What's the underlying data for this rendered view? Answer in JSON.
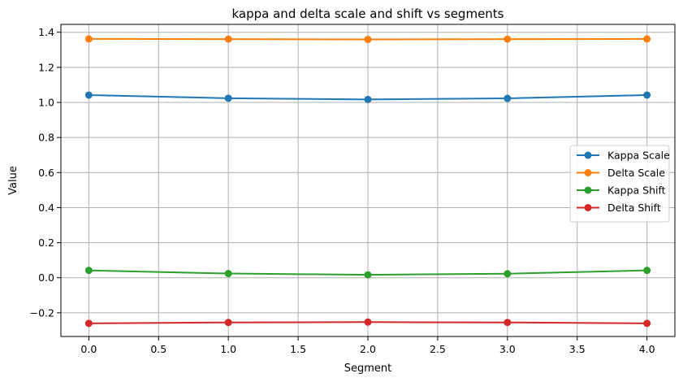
{
  "chart_data": {
    "type": "line",
    "title": "kappa and delta scale and shift vs segments",
    "xlabel": "Segment",
    "ylabel": "Value",
    "x": [
      0,
      1,
      2,
      3,
      4
    ],
    "xlim": [
      -0.2,
      4.2
    ],
    "ylim": [
      -0.335,
      1.445
    ],
    "xticks": [
      0.0,
      0.5,
      1.0,
      1.5,
      2.0,
      2.5,
      3.0,
      3.5,
      4.0
    ],
    "xtick_labels": [
      "0.0",
      "0.5",
      "1.0",
      "1.5",
      "2.0",
      "2.5",
      "3.0",
      "3.5",
      "4.0"
    ],
    "yticks": [
      -0.2,
      0.0,
      0.2,
      0.4,
      0.6,
      0.8,
      1.0,
      1.2,
      1.4
    ],
    "ytick_labels": [
      "−0.2",
      "0.0",
      "0.2",
      "0.4",
      "0.6",
      "0.8",
      "1.0",
      "1.2",
      "1.4"
    ],
    "grid": true,
    "legend_position": "center-right",
    "series": [
      {
        "name": "Kappa Scale",
        "color": "#1f77b4",
        "values": [
          1.042,
          1.024,
          1.017,
          1.023,
          1.042
        ]
      },
      {
        "name": "Delta Scale",
        "color": "#ff7f0e",
        "values": [
          1.362,
          1.361,
          1.359,
          1.361,
          1.362
        ]
      },
      {
        "name": "Kappa Shift",
        "color": "#2ca02c",
        "values": [
          0.042,
          0.024,
          0.017,
          0.023,
          0.042
        ]
      },
      {
        "name": "Delta Shift",
        "color": "#d62728",
        "values": [
          -0.26,
          -0.255,
          -0.253,
          -0.255,
          -0.26
        ]
      }
    ]
  }
}
